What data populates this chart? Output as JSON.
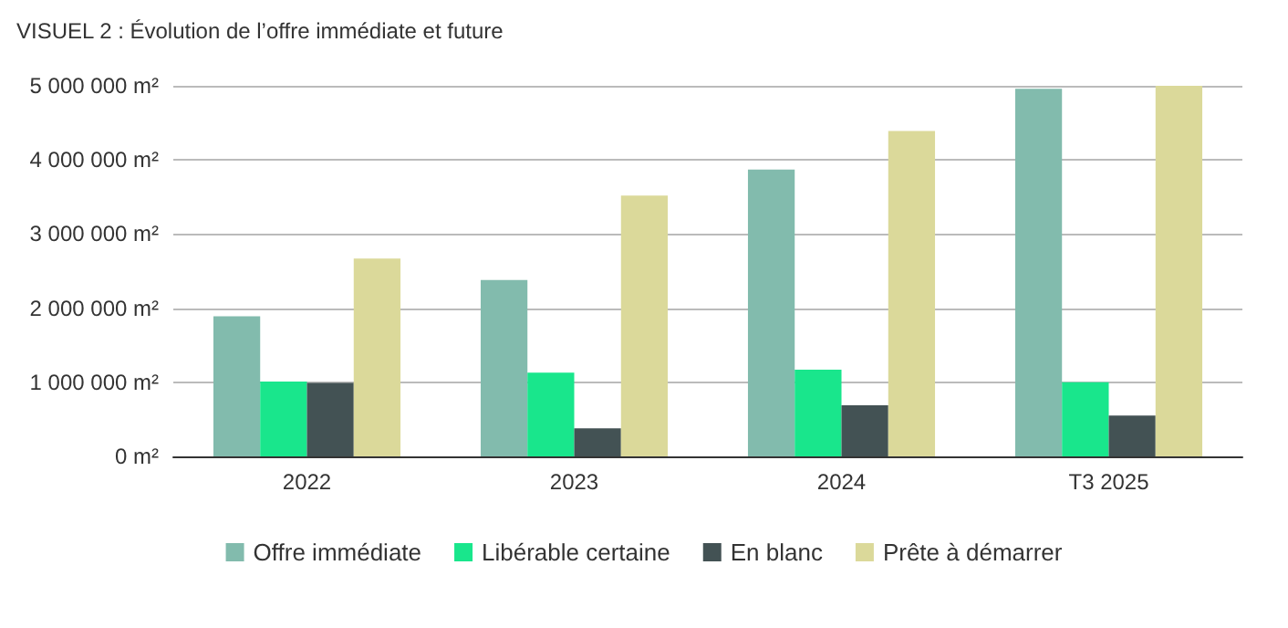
{
  "chart_data": {
    "type": "bar",
    "title": "VISUEL 2 : Évolution de l’offre immédiate et future",
    "categories": [
      "2022",
      "2023",
      "2024",
      "T3 2025"
    ],
    "series": [
      {
        "name": "Offre immédiate",
        "color": "#82bbad",
        "values": [
          1890000,
          2380000,
          3870000,
          4960000
        ]
      },
      {
        "name": "Libérable certaine",
        "color": "#19e68c",
        "values": [
          1010000,
          1130000,
          1170000,
          1000000
        ]
      },
      {
        "name": "En blanc",
        "color": "#435254",
        "values": [
          990000,
          380000,
          690000,
          550000
        ]
      },
      {
        "name": "Prête à démarrer",
        "color": "#dbd99a",
        "values": [
          2670000,
          3520000,
          4390000,
          5000000
        ]
      }
    ],
    "ylim": [
      0,
      5000000
    ],
    "yticks": [
      {
        "value": 0,
        "label": "0 m²"
      },
      {
        "value": 1000000,
        "label": "1 000 000 m²"
      },
      {
        "value": 2000000,
        "label": "2 000 000 m²"
      },
      {
        "value": 3000000,
        "label": "3 000 000 m²"
      },
      {
        "value": 4000000,
        "label": "4 000 000 m²"
      },
      {
        "value": 5000000,
        "label": "5 000 000 m²"
      }
    ],
    "grid": "y",
    "legend": "bottom"
  }
}
